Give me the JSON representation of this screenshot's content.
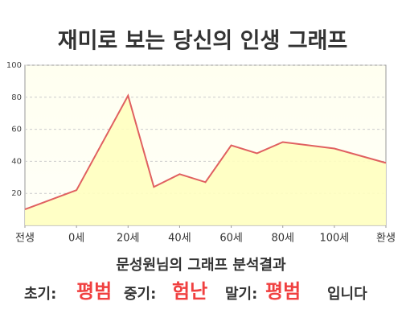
{
  "chart_data": {
    "type": "area",
    "title": "재미로 보는 당신의 인생 그래프",
    "x": [
      -20,
      0,
      20,
      30,
      40,
      50,
      60,
      70,
      80,
      100,
      120
    ],
    "values": [
      10,
      22,
      81,
      24,
      32,
      27,
      50,
      45,
      52,
      48,
      39
    ],
    "color": "#e06060",
    "fill": "#ffffc0",
    "xlim": [
      -20,
      120
    ],
    "xticks": [
      {
        "value": -20,
        "label": "전생"
      },
      {
        "value": 0,
        "label": "0세"
      },
      {
        "value": 20,
        "label": "20세"
      },
      {
        "value": 40,
        "label": "40세"
      },
      {
        "value": 60,
        "label": "60세"
      },
      {
        "value": 80,
        "label": "80세"
      },
      {
        "value": 100,
        "label": "100세"
      },
      {
        "value": 120,
        "label": "환생"
      }
    ],
    "ylim": [
      0,
      100
    ],
    "yticks": [
      20,
      40,
      60,
      80,
      100
    ],
    "grid": true
  },
  "result": {
    "heading": "문성원님의 그래프 분석결과",
    "parts": [
      {
        "label": "초기:",
        "verdict": "평범"
      },
      {
        "label": "중기:",
        "verdict": "험난"
      },
      {
        "label": "말기:",
        "verdict": "평범"
      }
    ],
    "ending": "입니다"
  }
}
